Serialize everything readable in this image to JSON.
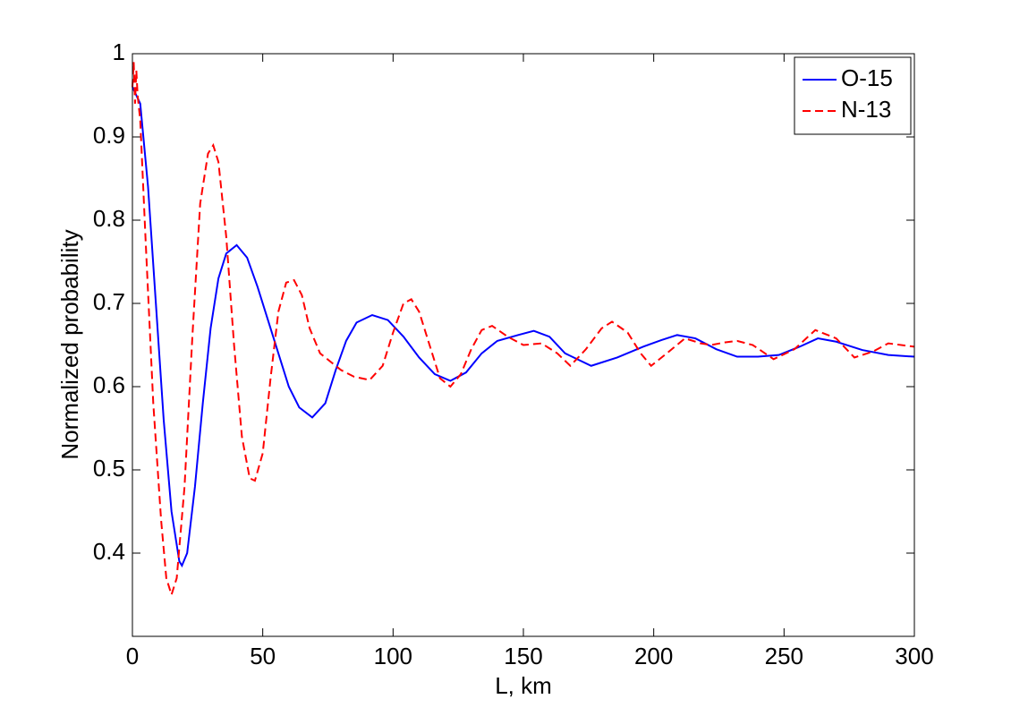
{
  "chart_data": {
    "type": "line",
    "xlabel": "L, km",
    "ylabel": "Normalized probability",
    "xlim": [
      0,
      300
    ],
    "ylim": [
      0.3,
      1
    ],
    "xticks": [
      0,
      50,
      100,
      150,
      200,
      250,
      300
    ],
    "yticks": [
      0.4,
      0.5,
      0.6,
      0.7,
      0.8,
      0.9,
      1
    ],
    "legend": "top-right",
    "series": [
      {
        "name": "O-15",
        "color": "#0000ff",
        "dash": "solid",
        "x": [
          0,
          3,
          6,
          9,
          12,
          15,
          18,
          19,
          21,
          24,
          27,
          30,
          33,
          36,
          40,
          44,
          48,
          52,
          56,
          60,
          64,
          69,
          74,
          78,
          82,
          86,
          92,
          98,
          104,
          110,
          116,
          122,
          128,
          134,
          140,
          148,
          154,
          160,
          166,
          176,
          186,
          196,
          203,
          209,
          216,
          224,
          232,
          240,
          248,
          256,
          263,
          270,
          280,
          290,
          300
        ],
        "values": [
          0.96,
          0.94,
          0.84,
          0.7,
          0.56,
          0.45,
          0.39,
          0.385,
          0.4,
          0.48,
          0.58,
          0.67,
          0.73,
          0.76,
          0.77,
          0.755,
          0.72,
          0.68,
          0.64,
          0.6,
          0.575,
          0.563,
          0.58,
          0.62,
          0.655,
          0.677,
          0.686,
          0.68,
          0.66,
          0.635,
          0.615,
          0.607,
          0.617,
          0.64,
          0.655,
          0.662,
          0.667,
          0.66,
          0.64,
          0.625,
          0.635,
          0.648,
          0.656,
          0.662,
          0.658,
          0.645,
          0.636,
          0.636,
          0.638,
          0.648,
          0.658,
          0.654,
          0.644,
          0.638,
          0.636
        ]
      },
      {
        "name": "N-13",
        "color": "#ff0000",
        "dash": "dashed",
        "x": [
          0,
          0.5,
          1,
          1.5,
          2,
          3,
          5,
          8,
          11,
          13,
          15,
          17,
          20,
          23,
          26,
          29,
          31,
          33,
          36,
          39,
          42,
          45,
          47,
          50,
          53,
          56,
          59,
          62,
          65,
          68,
          72,
          76,
          80,
          85,
          91,
          96,
          100,
          104,
          107,
          110,
          114,
          118,
          122,
          126,
          130,
          134,
          138,
          144,
          150,
          157,
          163,
          168,
          174,
          180,
          184,
          190,
          195,
          199,
          205,
          212,
          218,
          222,
          227,
          232,
          238,
          246,
          254,
          262,
          270,
          277,
          284,
          290,
          300
        ],
        "values": [
          0.96,
          0.99,
          0.94,
          0.98,
          0.95,
          0.92,
          0.78,
          0.58,
          0.44,
          0.37,
          0.35,
          0.37,
          0.48,
          0.66,
          0.82,
          0.88,
          0.89,
          0.87,
          0.78,
          0.65,
          0.54,
          0.49,
          0.487,
          0.52,
          0.61,
          0.69,
          0.725,
          0.728,
          0.71,
          0.67,
          0.64,
          0.63,
          0.62,
          0.612,
          0.608,
          0.625,
          0.665,
          0.7,
          0.705,
          0.69,
          0.65,
          0.61,
          0.6,
          0.615,
          0.645,
          0.668,
          0.673,
          0.66,
          0.65,
          0.652,
          0.64,
          0.625,
          0.645,
          0.67,
          0.678,
          0.665,
          0.64,
          0.625,
          0.64,
          0.658,
          0.652,
          0.65,
          0.653,
          0.655,
          0.65,
          0.633,
          0.645,
          0.668,
          0.658,
          0.635,
          0.642,
          0.652,
          0.648
        ]
      }
    ]
  }
}
